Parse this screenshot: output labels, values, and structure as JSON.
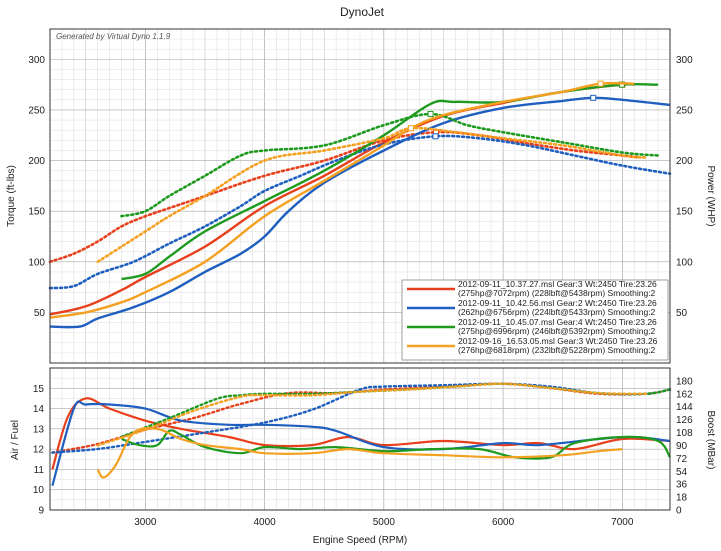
{
  "chart_data": {
    "type": "line",
    "title": "DynoJet",
    "note": "Generated by Virtual Dyno 1.1.9",
    "xlabel": "Engine Speed (RPM)",
    "xlim": [
      2200,
      7400
    ],
    "x_ticks": [
      "3000",
      "4000",
      "5000",
      "6000",
      "7000"
    ],
    "top_panel": {
      "ylabel_left": "Torque (ft-lbs)",
      "ylabel_right": "Power (WHP)",
      "ylim": [
        0,
        330
      ],
      "y_ticks": [
        "50",
        "100",
        "150",
        "200",
        "250",
        "300"
      ],
      "grid": true
    },
    "bottom_panel": {
      "ylabel_left": "Air / Fuel",
      "ylabel_right": "Boost (MBar)",
      "ylim_left": [
        9,
        16
      ],
      "ylim_right": [
        0,
        198
      ],
      "y_ticks_left": [
        "9",
        "10",
        "11",
        "12",
        "13",
        "14",
        "15"
      ],
      "y_ticks_right": [
        "0",
        "18",
        "36",
        "54",
        "72",
        "90",
        "108",
        "126",
        "144",
        "162",
        "180"
      ],
      "grid": true
    },
    "legend": {
      "position": "bottom-right",
      "entries": [
        {
          "line1": "2012-09-11_10.37.27.msl Gear:3 Wt:2450 Tire:23.26",
          "line2": "(275hp@7072rpm) (228lbft@5438rpm) Smoothing:2",
          "color": "#e8401c"
        },
        {
          "line1": "2012-09-11_10.42.56.msl Gear:2 Wt:2450 Tire:23.26",
          "line2": "(262hp@6756rpm) (224lbft@5433rpm) Smoothing:2",
          "color": "#1f5fbf"
        },
        {
          "line1": "2012-09-11_10.45.07.msl Gear:4 Wt:2450 Tire:23.26",
          "line2": "(275hp@6996rpm) (246lbft@5392rpm) Smoothing:2",
          "color": "#1e9a1e"
        },
        {
          "line1": "2012-09-16_16.53.05.msl Gear:3 Wt:2450 Tire:23.26",
          "line2": "(276hp@6818rpm) (232lbft@5228rpm) Smoothing:2",
          "color": "#f4a020"
        }
      ]
    },
    "series": [
      {
        "color": "#e8401c",
        "power": {
          "x": [
            2200,
            2500,
            2800,
            3000,
            3500,
            4000,
            4500,
            5000,
            5500,
            6000,
            6500,
            7000,
            7100
          ],
          "y": [
            48,
            56,
            72,
            85,
            115,
            155,
            185,
            218,
            244,
            257,
            268,
            275,
            275
          ]
        },
        "torque": {
          "x": [
            2200,
            2400,
            2600,
            2800,
            3000,
            3200,
            3500,
            4000,
            4500,
            5000,
            5438,
            5800,
            6200,
            6600,
            7000,
            7150
          ],
          "y": [
            100,
            108,
            120,
            135,
            145,
            153,
            165,
            185,
            200,
            220,
            228,
            225,
            217,
            210,
            205,
            203
          ]
        },
        "afr": {
          "x": [
            2220,
            2350,
            2500,
            2700,
            3000,
            3300,
            3700,
            4000,
            4400,
            4700,
            5000,
            5500,
            6000,
            6300,
            6600,
            7000,
            7400
          ],
          "y": [
            11.0,
            13.6,
            14.5,
            14.0,
            13.4,
            13.0,
            12.6,
            12.2,
            12.2,
            12.6,
            12.2,
            12.4,
            12.2,
            12.3,
            12.0,
            12.5,
            12.4
          ]
        },
        "boost": {
          "x": [
            2220,
            2600,
            3000,
            3400,
            3800,
            4200,
            4600,
            5000,
            5500,
            6000,
            6400,
            6800,
            7200,
            7400
          ],
          "y": [
            80,
            92,
            112,
            128,
            148,
            163,
            163,
            168,
            172,
            176,
            170,
            162,
            162,
            168
          ]
        }
      },
      {
        "color": "#1f5fbf",
        "power": {
          "x": [
            2200,
            2450,
            2600,
            2900,
            3200,
            3500,
            3800,
            4000,
            4200,
            4500,
            5000,
            5500,
            6000,
            6500,
            6756,
            7000,
            7400
          ],
          "y": [
            36,
            36,
            44,
            55,
            70,
            90,
            108,
            125,
            150,
            178,
            210,
            237,
            252,
            259,
            262,
            260,
            255
          ]
        },
        "torque": {
          "x": [
            2200,
            2400,
            2600,
            2900,
            3200,
            3500,
            3800,
            4000,
            4300,
            4600,
            5000,
            5433,
            5800,
            6200,
            6600,
            7000,
            7400
          ],
          "y": [
            74,
            76,
            88,
            100,
            118,
            135,
            155,
            170,
            185,
            200,
            216,
            224,
            222,
            215,
            205,
            195,
            187
          ]
        },
        "afr": {
          "x": [
            2220,
            2400,
            2500,
            2700,
            3000,
            3300,
            3700,
            4000,
            4400,
            4600,
            5000,
            5500,
            6000,
            6300,
            6800,
            7100,
            7400
          ],
          "y": [
            10.2,
            14.0,
            14.2,
            14.2,
            14.0,
            13.4,
            13.2,
            13.2,
            13.1,
            12.9,
            12.1,
            12.0,
            12.3,
            12.2,
            12.5,
            12.6,
            12.4
          ]
        },
        "boost": {
          "x": [
            2220,
            2600,
            3000,
            3500,
            4000,
            4400,
            4800,
            5000,
            5500,
            6000,
            6400,
            6800,
            7200,
            7400
          ],
          "y": [
            80,
            85,
            95,
            108,
            122,
            140,
            168,
            172,
            174,
            176,
            172,
            163,
            162,
            168
          ]
        }
      },
      {
        "color": "#1e9a1e",
        "power": {
          "x": [
            2800,
            3000,
            3200,
            3500,
            4000,
            4500,
            5000,
            5392,
            5600,
            6000,
            6500,
            6996,
            7300
          ],
          "y": [
            83,
            88,
            105,
            130,
            160,
            190,
            225,
            256,
            258,
            258,
            268,
            275,
            275
          ]
        },
        "torque": {
          "x": [
            2800,
            3000,
            3200,
            3500,
            3800,
            4000,
            4500,
            5000,
            5392,
            5700,
            6000,
            6500,
            7000,
            7300
          ],
          "y": [
            145,
            150,
            165,
            185,
            205,
            210,
            215,
            235,
            246,
            235,
            228,
            218,
            208,
            205
          ]
        },
        "afr": {
          "x": [
            2800,
            2950,
            3100,
            3200,
            3300,
            3500,
            3800,
            4000,
            4300,
            4600,
            5000,
            5400,
            5800,
            6100,
            6400,
            6600,
            7000,
            7300,
            7400
          ],
          "y": [
            12.5,
            12.2,
            12.2,
            12.9,
            12.7,
            12.1,
            11.8,
            12.1,
            12.0,
            12.1,
            11.9,
            12.0,
            12.0,
            11.6,
            11.6,
            12.3,
            12.6,
            12.4,
            11.6
          ]
        },
        "boost": {
          "x": [
            2800,
            3200,
            3600,
            3800,
            4000,
            4400,
            4800,
            5200,
            5600,
            6000,
            6400,
            6800,
            7200,
            7400
          ],
          "y": [
            102,
            128,
            155,
            160,
            162,
            162,
            165,
            168,
            172,
            176,
            170,
            163,
            162,
            168
          ]
        }
      },
      {
        "color": "#f4a020",
        "power": {
          "x": [
            2200,
            2500,
            2800,
            3000,
            3500,
            4000,
            4500,
            5000,
            5228,
            5500,
            6000,
            6500,
            6818,
            7100
          ],
          "y": [
            45,
            50,
            60,
            70,
            100,
            145,
            180,
            215,
            232,
            245,
            258,
            268,
            276,
            276
          ]
        },
        "torque": {
          "x": [
            2600,
            2800,
            3000,
            3200,
            3500,
            4000,
            4500,
            5000,
            5228,
            5600,
            6000,
            6500,
            7000,
            7200
          ],
          "y": [
            100,
            115,
            130,
            145,
            165,
            200,
            210,
            222,
            232,
            228,
            222,
            215,
            205,
            203
          ]
        },
        "afr": {
          "x": [
            2600,
            2650,
            2750,
            2900,
            3100,
            3300,
            3500,
            3800,
            4000,
            4400,
            4700,
            5000,
            5500,
            6000,
            6500,
            6800,
            7000
          ],
          "y": [
            11.0,
            10.6,
            11.2,
            12.8,
            13.0,
            12.5,
            12.2,
            12.0,
            11.8,
            11.8,
            12.0,
            11.8,
            11.7,
            11.6,
            11.7,
            11.9,
            12.0
          ]
        },
        "boost": {
          "x": [
            2600,
            3000,
            3400,
            3800,
            4000,
            4400,
            4800,
            5200,
            5600,
            6000,
            6400,
            6800,
            7200
          ],
          "y": [
            90,
            112,
            138,
            158,
            160,
            160,
            165,
            168,
            172,
            176,
            170,
            163,
            162
          ]
        }
      }
    ]
  }
}
